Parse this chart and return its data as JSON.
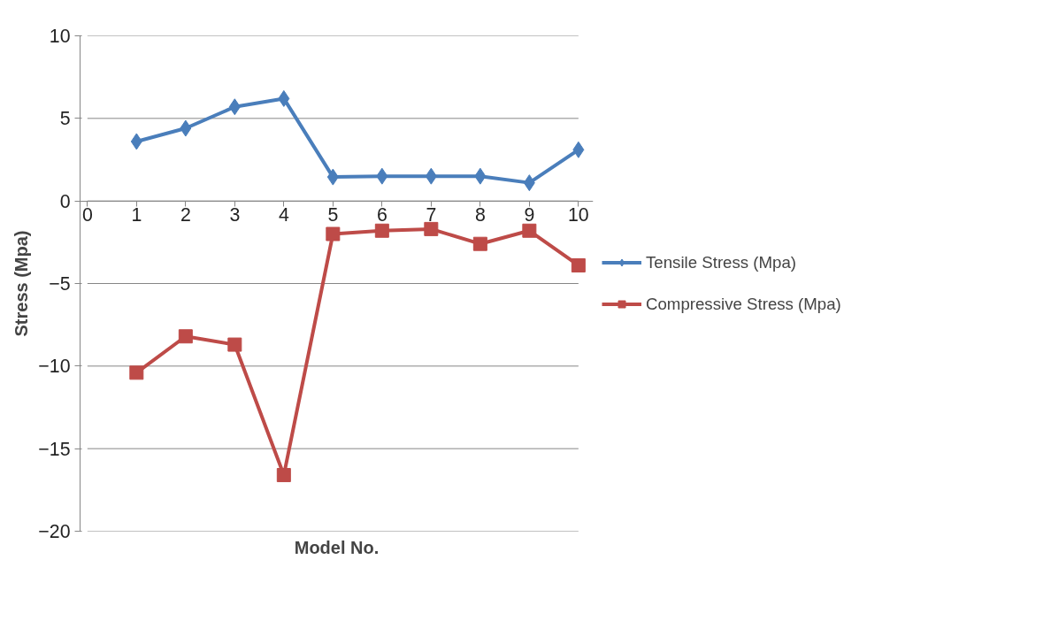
{
  "chart_data": {
    "type": "line",
    "xlabel": "Model No.",
    "ylabel": "Stress (Mpa)",
    "x": [
      1,
      2,
      3,
      4,
      5,
      6,
      7,
      8,
      9,
      10
    ],
    "series": [
      {
        "name": "Tensile Stress (Mpa)",
        "color": "#4a7ebb",
        "marker": "diamond",
        "values": [
          3.6,
          4.4,
          5.7,
          6.2,
          1.45,
          1.5,
          1.5,
          1.5,
          1.1,
          3.1
        ]
      },
      {
        "name": "Compressive Stress (Mpa)",
        "color": "#be4b48",
        "marker": "square",
        "values": [
          -10.4,
          -8.2,
          -8.7,
          -16.6,
          -2.0,
          -1.8,
          -1.7,
          -2.6,
          -1.8,
          -3.9
        ]
      }
    ],
    "xlim": [
      0,
      10
    ],
    "xticks": [
      0,
      1,
      2,
      3,
      4,
      5,
      6,
      7,
      8,
      9,
      10
    ],
    "ylim": [
      -20,
      10
    ],
    "yticks": [
      -20,
      -15,
      -10,
      -5,
      0,
      5,
      10
    ],
    "grid": "y",
    "legend": "right",
    "line_style": "solid"
  }
}
